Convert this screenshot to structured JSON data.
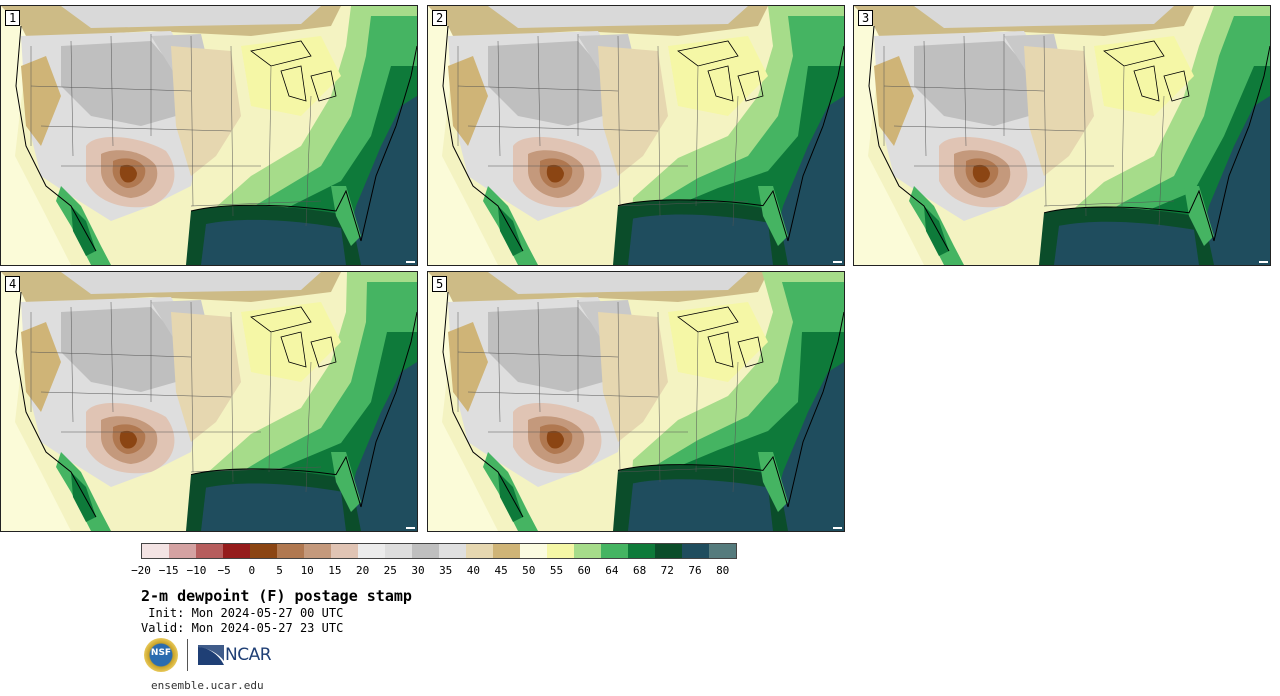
{
  "panels": [
    {
      "label": "1"
    },
    {
      "label": "2"
    },
    {
      "label": "3"
    },
    {
      "label": "4"
    },
    {
      "label": "5"
    }
  ],
  "colorbar": {
    "colors": [
      "#f3e3e3",
      "#d4a2a2",
      "#b65d5d",
      "#951c1c",
      "#8b4513",
      "#b07850",
      "#c4997c",
      "#e0c4b4",
      "#ececec",
      "#dedede",
      "#bfbfbf",
      "#dfdfdf",
      "#e6d7b0",
      "#cfb477",
      "#fbfbe0",
      "#f5f7a6",
      "#a6dc8a",
      "#45b462",
      "#0e7a3a",
      "#0b4d2a",
      "#1f4d5e",
      "#557b7d"
    ],
    "ticks": [
      "−20",
      "−15",
      "−10",
      "−5",
      "0",
      "5",
      "10",
      "15",
      "20",
      "25",
      "30",
      "35",
      "40",
      "45",
      "50",
      "55",
      "60",
      "64",
      "68",
      "72",
      "76",
      "80"
    ]
  },
  "title": "2-m dewpoint (F) postage stamp",
  "init": " Init: Mon 2024-05-27 00 UTC",
  "valid": "Valid: Mon 2024-05-27 23 UTC",
  "logos": {
    "nsf": "NSF",
    "ncar": "NCAR"
  },
  "url": "ensemble.ucar.edu"
}
